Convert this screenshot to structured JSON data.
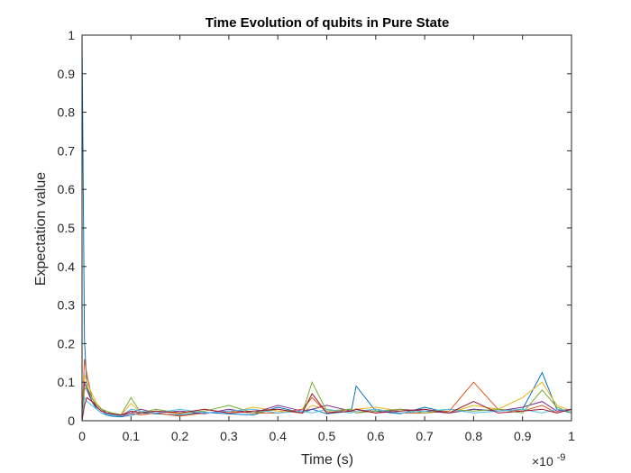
{
  "chart_data": {
    "type": "line",
    "title": "Time Evolution of qubits in Pure State",
    "xlabel": "Time (s)",
    "ylabel": "Expectation value",
    "xlim": [
      0,
      1
    ],
    "ylim": [
      0,
      1
    ],
    "x_exponent_label": "×10",
    "x_exponent": "-9",
    "x_ticks": [
      0,
      0.1,
      0.2,
      0.3,
      0.4,
      0.5,
      0.6,
      0.7,
      0.8,
      0.9,
      1
    ],
    "x_tick_labels": [
      "0",
      "0.1",
      "0.2",
      "0.3",
      "0.4",
      "0.5",
      "0.6",
      "0.7",
      "0.8",
      "0.9",
      "1"
    ],
    "y_ticks": [
      0,
      0.1,
      0.2,
      0.3,
      0.4,
      0.5,
      0.6,
      0.7,
      0.8,
      0.9,
      1
    ],
    "y_tick_labels": [
      "0",
      "0.1",
      "0.2",
      "0.3",
      "0.4",
      "0.5",
      "0.6",
      "0.7",
      "0.8",
      "0.9",
      "1"
    ],
    "grid": false,
    "legend": "none",
    "colors": [
      "#0072BD",
      "#D95319",
      "#EDB120",
      "#7E2F8E",
      "#77AC30",
      "#4DBEEE",
      "#A2142F"
    ],
    "x": [
      0,
      0.005,
      0.01,
      0.02,
      0.03,
      0.04,
      0.05,
      0.06,
      0.08,
      0.1,
      0.12,
      0.15,
      0.2,
      0.25,
      0.3,
      0.35,
      0.4,
      0.45,
      0.47,
      0.5,
      0.55,
      0.56,
      0.6,
      0.65,
      0.7,
      0.75,
      0.8,
      0.85,
      0.9,
      0.94,
      0.97,
      1
    ],
    "series": [
      {
        "values": [
          1.0,
          0.21,
          0.09,
          0.05,
          0.03,
          0.02,
          0.015,
          0.012,
          0.01,
          0.015,
          0.02,
          0.018,
          0.015,
          0.022,
          0.018,
          0.015,
          0.035,
          0.02,
          0.03,
          0.018,
          0.025,
          0.09,
          0.025,
          0.018,
          0.035,
          0.02,
          0.03,
          0.025,
          0.03,
          0.125,
          0.03,
          0.02
        ]
      },
      {
        "values": [
          0,
          0.16,
          0.12,
          0.06,
          0.035,
          0.025,
          0.02,
          0.015,
          0.012,
          0.02,
          0.015,
          0.02,
          0.012,
          0.02,
          0.025,
          0.02,
          0.02,
          0.03,
          0.06,
          0.02,
          0.03,
          0.02,
          0.03,
          0.02,
          0.02,
          0.025,
          0.1,
          0.03,
          0.025,
          0.04,
          0.02,
          0.03
        ]
      },
      {
        "values": [
          0,
          0.12,
          0.1,
          0.07,
          0.045,
          0.03,
          0.025,
          0.02,
          0.015,
          0.045,
          0.02,
          0.025,
          0.018,
          0.03,
          0.02,
          0.035,
          0.025,
          0.02,
          0.04,
          0.03,
          0.02,
          0.03,
          0.035,
          0.025,
          0.03,
          0.02,
          0.04,
          0.03,
          0.06,
          0.1,
          0.04,
          0.025
        ]
      },
      {
        "values": [
          0,
          0.1,
          0.08,
          0.05,
          0.04,
          0.03,
          0.02,
          0.018,
          0.014,
          0.02,
          0.03,
          0.02,
          0.025,
          0.018,
          0.03,
          0.02,
          0.04,
          0.025,
          0.03,
          0.04,
          0.025,
          0.03,
          0.02,
          0.03,
          0.025,
          0.02,
          0.03,
          0.025,
          0.035,
          0.05,
          0.025,
          0.03
        ]
      },
      {
        "values": [
          0,
          0.08,
          0.09,
          0.06,
          0.04,
          0.03,
          0.025,
          0.02,
          0.016,
          0.06,
          0.02,
          0.03,
          0.02,
          0.025,
          0.04,
          0.02,
          0.03,
          0.02,
          0.1,
          0.025,
          0.03,
          0.02,
          0.025,
          0.03,
          0.02,
          0.03,
          0.025,
          0.03,
          0.02,
          0.08,
          0.035,
          0.02
        ]
      },
      {
        "values": [
          0,
          0.06,
          0.05,
          0.04,
          0.03,
          0.02,
          0.018,
          0.015,
          0.012,
          0.03,
          0.025,
          0.02,
          0.03,
          0.02,
          0.025,
          0.03,
          0.02,
          0.025,
          0.02,
          0.03,
          0.02,
          0.025,
          0.03,
          0.02,
          0.025,
          0.03,
          0.02,
          0.025,
          0.03,
          0.02,
          0.03,
          0.025
        ]
      },
      {
        "values": [
          0,
          0.04,
          0.06,
          0.05,
          0.035,
          0.025,
          0.02,
          0.018,
          0.015,
          0.025,
          0.02,
          0.025,
          0.02,
          0.03,
          0.02,
          0.025,
          0.03,
          0.02,
          0.07,
          0.02,
          0.025,
          0.03,
          0.02,
          0.025,
          0.03,
          0.02,
          0.05,
          0.02,
          0.025,
          0.03,
          0.02,
          0.03
        ]
      }
    ]
  }
}
